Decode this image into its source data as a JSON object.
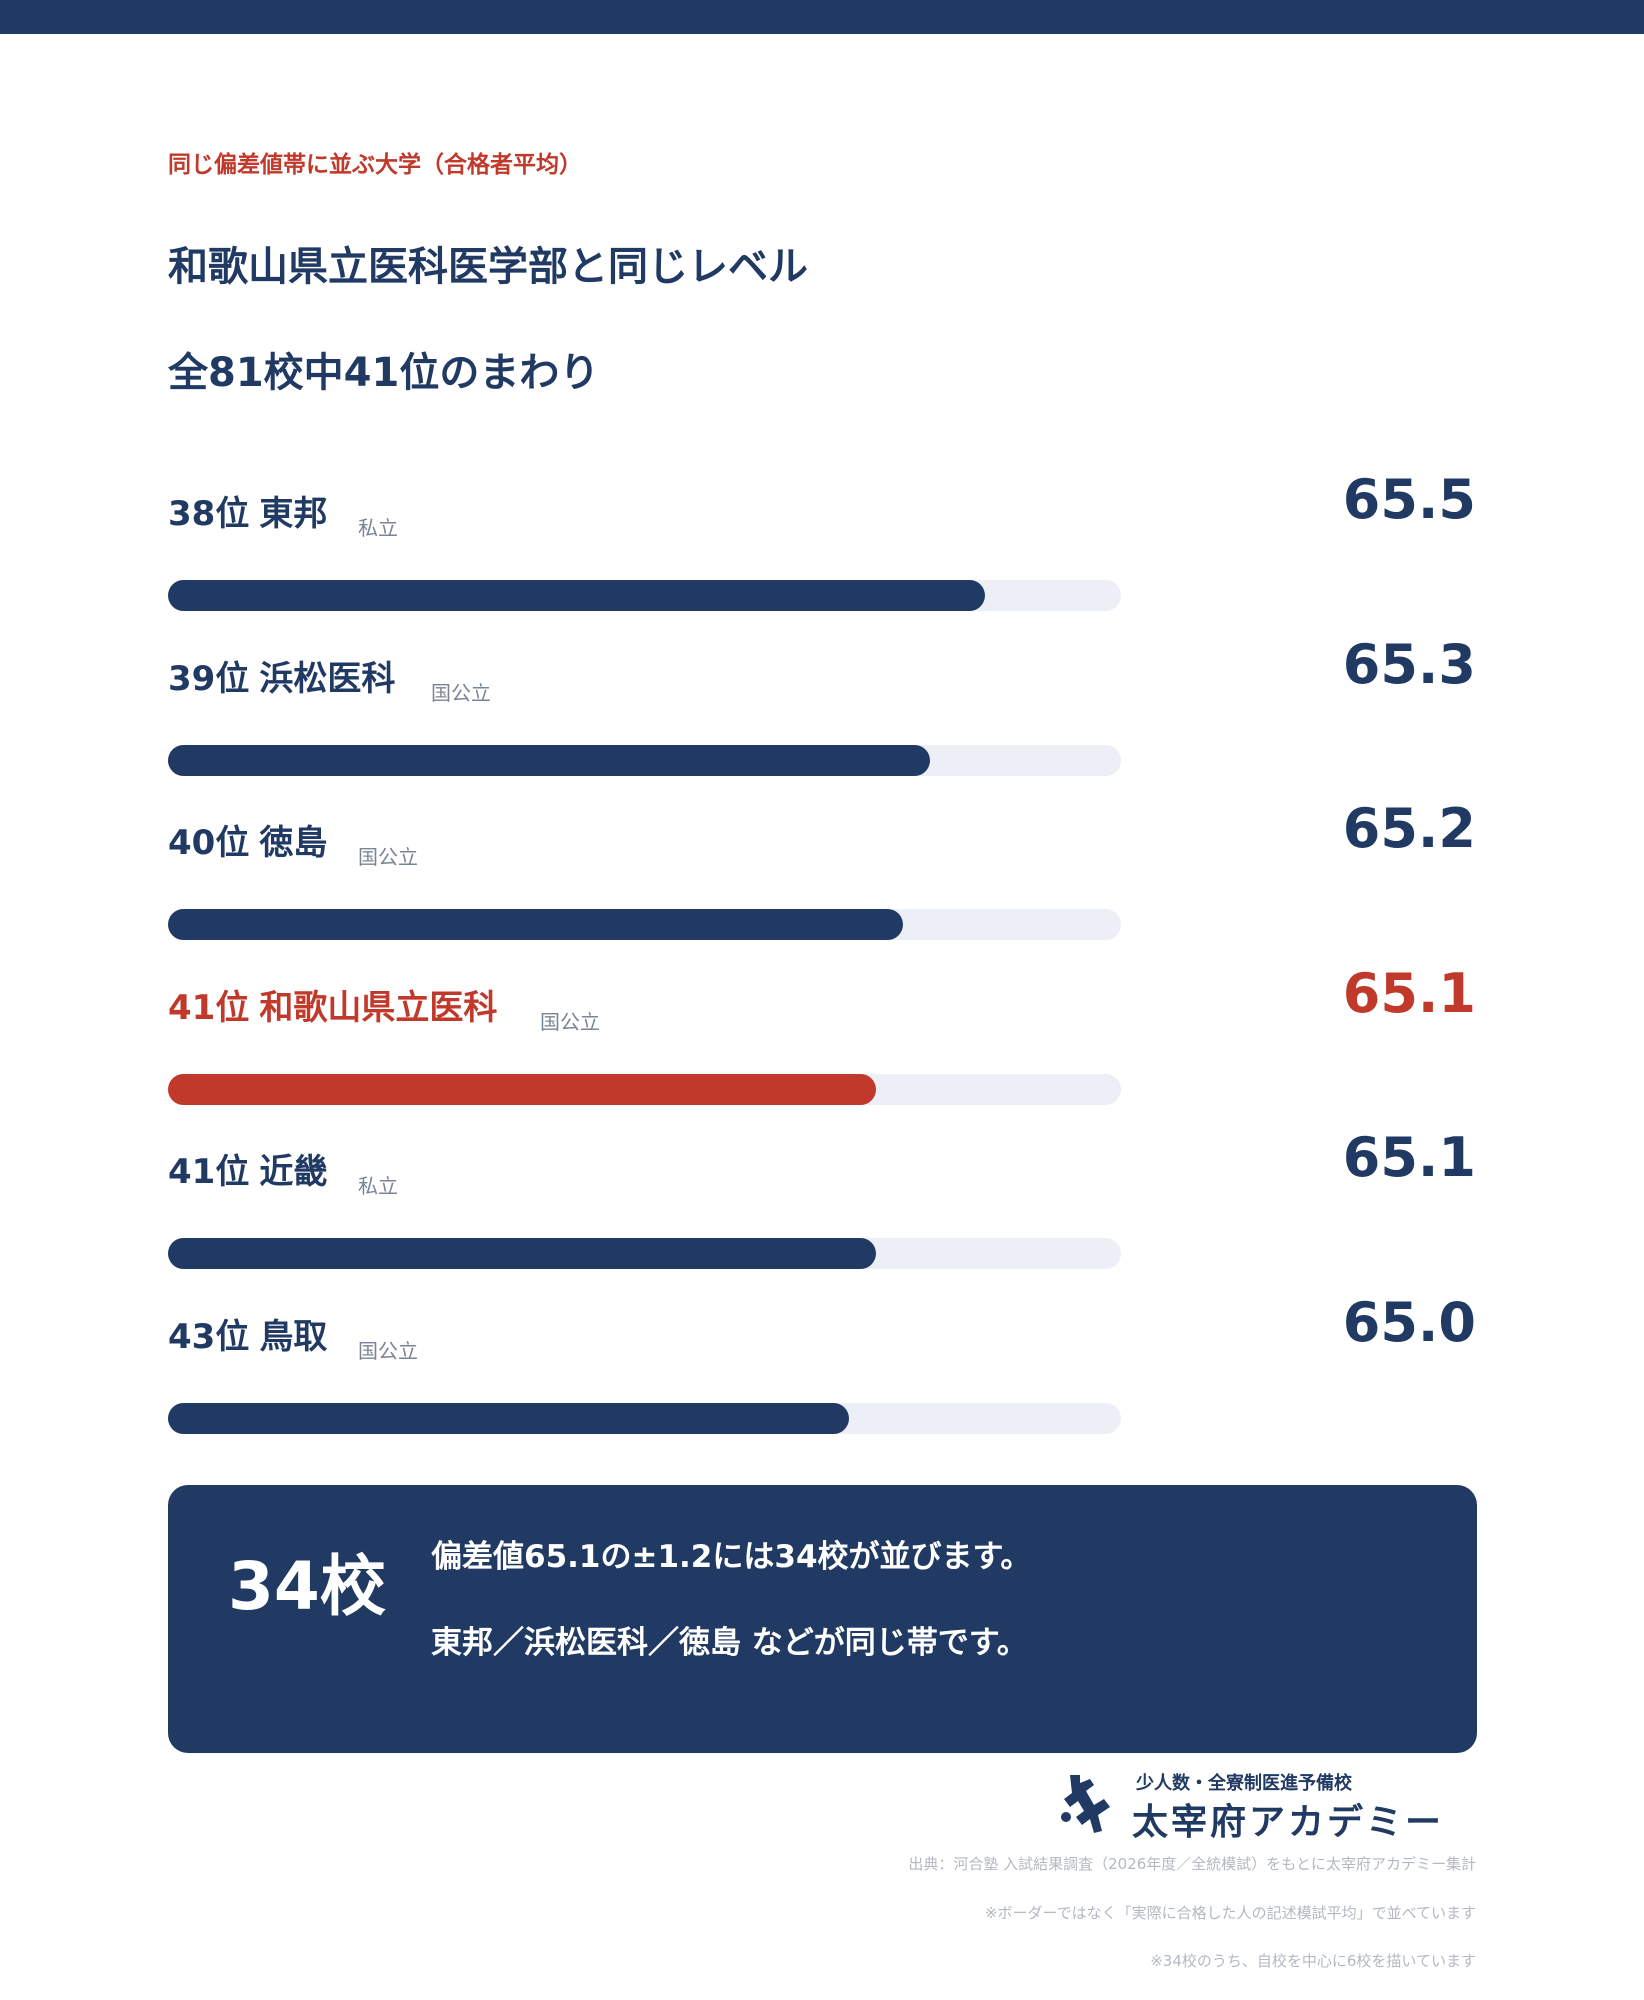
{
  "header": {
    "eyebrow": "同じ偏差値帯に並ぶ大学（合格者平均）",
    "title_line1": "和歌山県立医科医学部と同じレベル",
    "title_line2": "全81校中41位のまわり"
  },
  "colors": {
    "navy": "#213a63",
    "accent_red": "#c0392b",
    "track": "#eceff6"
  },
  "chart_data": {
    "type": "bar",
    "orientation": "horizontal",
    "metric": "偏差値",
    "xlim": [
      62.5,
      66.0
    ],
    "highlight_index": 3,
    "rows": [
      {
        "rank": "38位",
        "name": "東邦",
        "type": "私立",
        "value": 65.5
      },
      {
        "rank": "39位",
        "name": "浜松医科",
        "type": "国公立",
        "value": 65.3
      },
      {
        "rank": "40位",
        "name": "徳島",
        "type": "国公立",
        "value": 65.2
      },
      {
        "rank": "41位",
        "name": "和歌山県立医科",
        "type": "国公立",
        "value": 65.1
      },
      {
        "rank": "41位",
        "name": "近畿",
        "type": "私立",
        "value": 65.1
      },
      {
        "rank": "43位",
        "name": "鳥取",
        "type": "国公立",
        "value": 65.0
      }
    ]
  },
  "summary": {
    "count": "34校",
    "line1": "偏差値65.1の±1.2には34校が並びます。",
    "line2": "東邦／浜松医科／徳島 などが同じ帯です。"
  },
  "logo": {
    "subtitle": "少人数・全寮制医進予備校",
    "name": "太宰府アカデミー",
    "icon": "academy-logo-icon"
  },
  "notes": {
    "source": "出典：河合塾 入試結果調査（2026年度／全統模試）をもとに太宰府アカデミー集計",
    "note1": "※ボーダーではなく「実際に合格した人の記述模試平均」で並べています",
    "note2": "※34校のうち、自校を中心に6校を描いています"
  }
}
